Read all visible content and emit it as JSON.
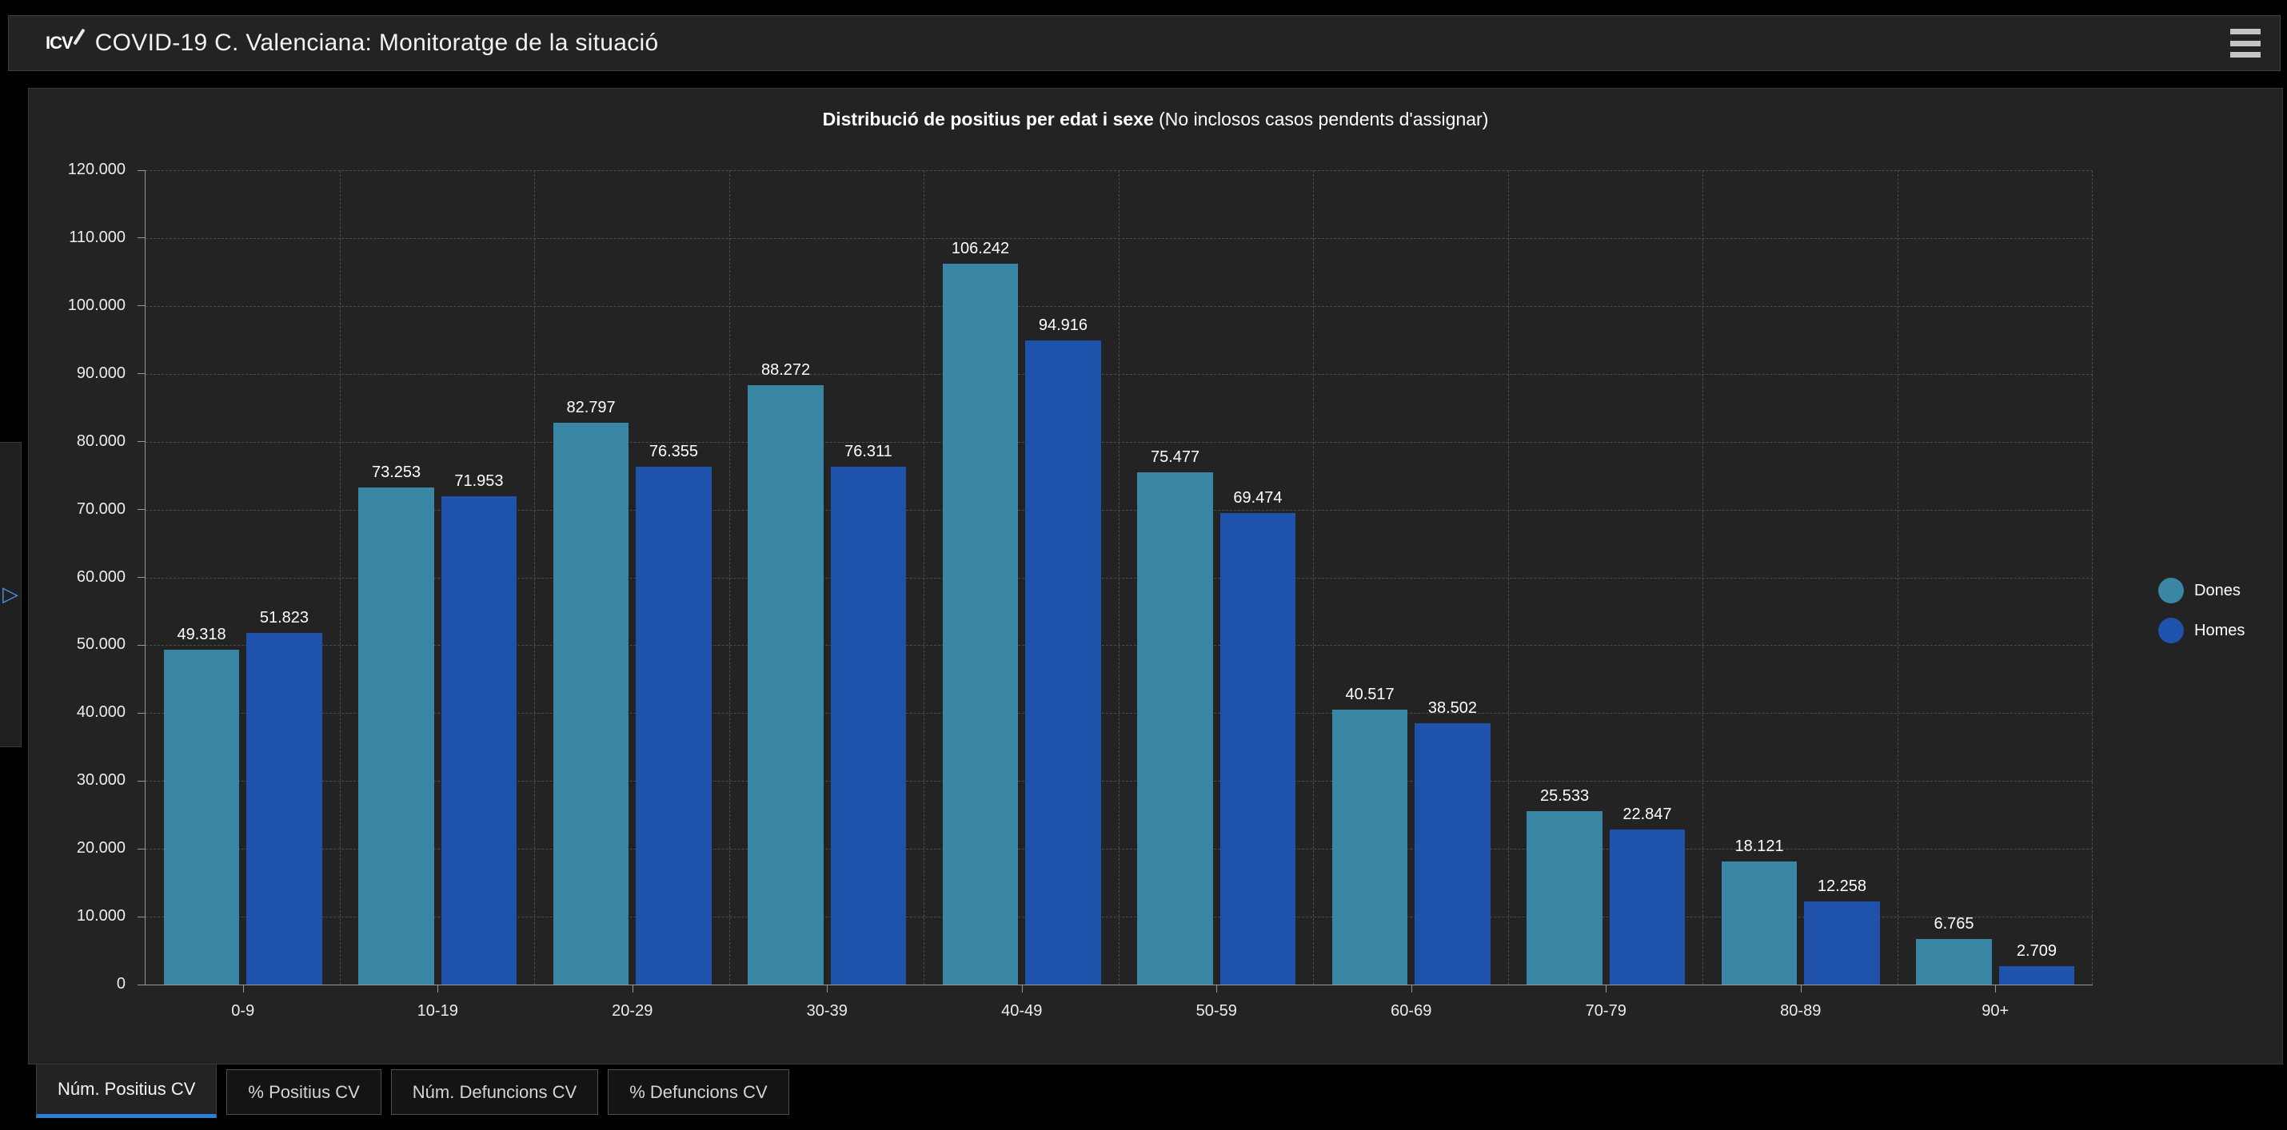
{
  "header": {
    "logo_text": "ICV",
    "title": "COVID-19 C. Valenciana: Monitoratge de la situació"
  },
  "side_panel": {
    "expand_glyph": "▷"
  },
  "chart_data": {
    "type": "bar",
    "title_bold": "Distribució de positius per edat i sexe",
    "title_note": " (No inclosos casos pendents d'assignar)",
    "categories": [
      "0-9",
      "10-19",
      "20-29",
      "30-39",
      "40-49",
      "50-59",
      "60-69",
      "70-79",
      "80-89",
      "90+"
    ],
    "series": [
      {
        "name": "Dones",
        "color": "#3a86a5",
        "values": [
          49318,
          73253,
          82797,
          88272,
          106242,
          75477,
          40517,
          25533,
          18121,
          6765
        ],
        "labels": [
          "49.318",
          "73.253",
          "82.797",
          "88.272",
          "106.242",
          "75.477",
          "40.517",
          "25.533",
          "18.121",
          "6.765"
        ]
      },
      {
        "name": "Homes",
        "color": "#1f52ab",
        "values": [
          51823,
          71953,
          76355,
          76311,
          94916,
          69474,
          38502,
          22847,
          12258,
          2709
        ],
        "labels": [
          "51.823",
          "71.953",
          "76.355",
          "76.311",
          "94.916",
          "69.474",
          "38.502",
          "22.847",
          "12.258",
          "2.709"
        ]
      }
    ],
    "ylim": [
      0,
      120000
    ],
    "ytick_labels": [
      "0",
      "10.000",
      "20.000",
      "30.000",
      "40.000",
      "50.000",
      "60.000",
      "70.000",
      "80.000",
      "90.000",
      "100.000",
      "110.000",
      "120.000"
    ],
    "grid": "dashed",
    "legend_position": "right"
  },
  "tabs": [
    {
      "label": "Núm. Positius CV",
      "active": true
    },
    {
      "label": "% Positius CV",
      "active": false
    },
    {
      "label": "Núm. Defuncions CV",
      "active": false
    },
    {
      "label": "% Defuncions CV",
      "active": false
    }
  ],
  "colors": {
    "dones": "#3a86a5",
    "homes": "#1f52ab",
    "active_tab_underline": "#2e7fd7",
    "expand_arrow": "#4c8fe2"
  }
}
